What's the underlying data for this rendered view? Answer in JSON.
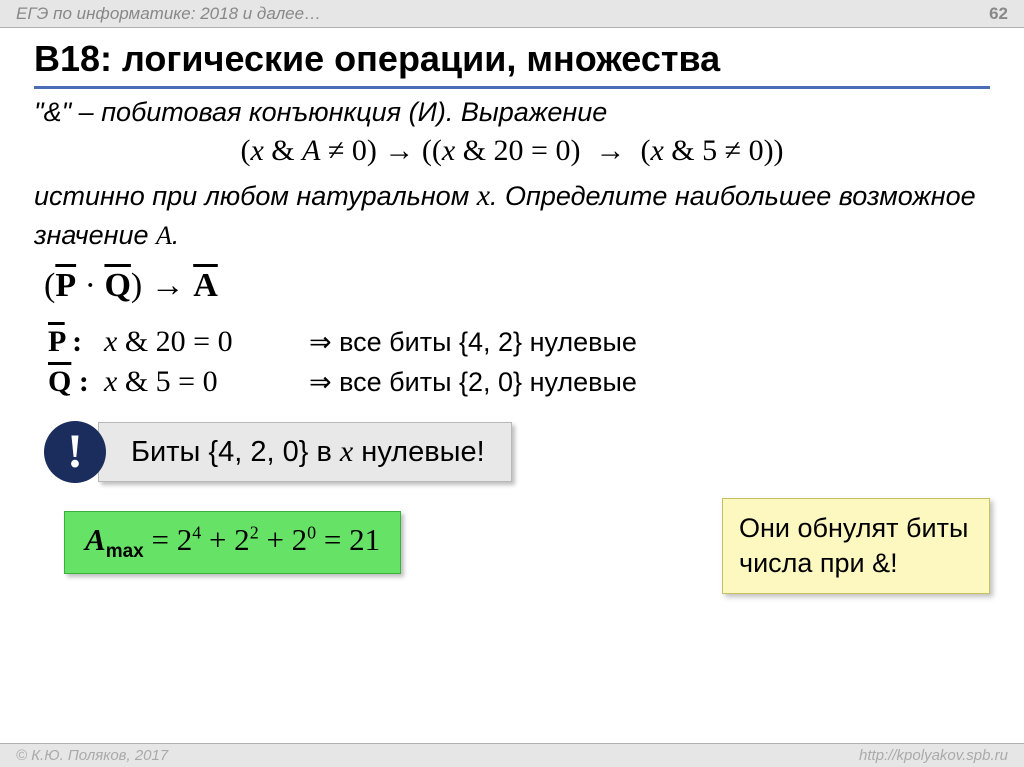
{
  "header": {
    "title": "ЕГЭ по информатике: 2018 и далее…",
    "page_number": "62"
  },
  "footer": {
    "copyright": "© К.Ю. Поляков, 2017",
    "url": "http://kpolyakov.spb.ru"
  },
  "slide": {
    "title": "B18: логические операции, множества",
    "intro": "\"&\" – побитовая конъюнкция (И). Выражение",
    "formula": {
      "part1": "(x & A ≠ 0) → ((x & 20 = 0)  →  (x & 5 ≠ 0))"
    },
    "task_line1": "истинно при любом натуральном ",
    "task_x": "x",
    "task_line2": ". Определите наибольшее возможное значение ",
    "task_A": "A",
    "task_dot": ".",
    "logic_line": "(P̄ · Q̄) → Ā",
    "p_row": {
      "label": "P̄ :",
      "expr_x": "x",
      "expr_rest": " & 20 = 0",
      "result": "⇒ все биты {4, 2} нулевые"
    },
    "q_row": {
      "label": "Q̄ :",
      "expr_x": "x",
      "expr_rest": " & 5 = 0",
      "result": "⇒ все биты {2, 0} нулевые"
    },
    "excl": "!",
    "grey_text_1": "Биты {4, 2, 0} в ",
    "grey_x": "x",
    "grey_text_2": " нулевые!",
    "yellow_text": "Они обнулят биты числа при &!",
    "green": {
      "A": "A",
      "sub": "max",
      "eq": "  =  2",
      "e1": "4",
      "plus1": " + 2",
      "e2": "2",
      "plus2": " + 2",
      "e3": "0",
      "result": " = 21"
    }
  },
  "colors": {
    "header_bg": "#e6e6e6",
    "underline": "#4a6db5",
    "circle": "#1a2d5c",
    "grey_box": "#e8e8e8",
    "yellow_box": "#fcf8c0",
    "green_box": "#66e266"
  }
}
